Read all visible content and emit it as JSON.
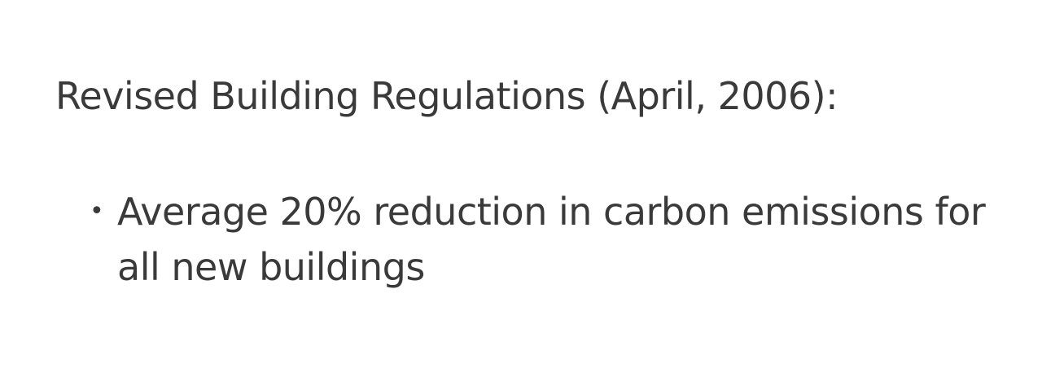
{
  "slide": {
    "heading": "Revised Building Regulations (April, 2006):",
    "bullets": [
      {
        "marker": "•",
        "text": "Average 20% reduction in carbon emissions for all new buildings"
      }
    ]
  }
}
